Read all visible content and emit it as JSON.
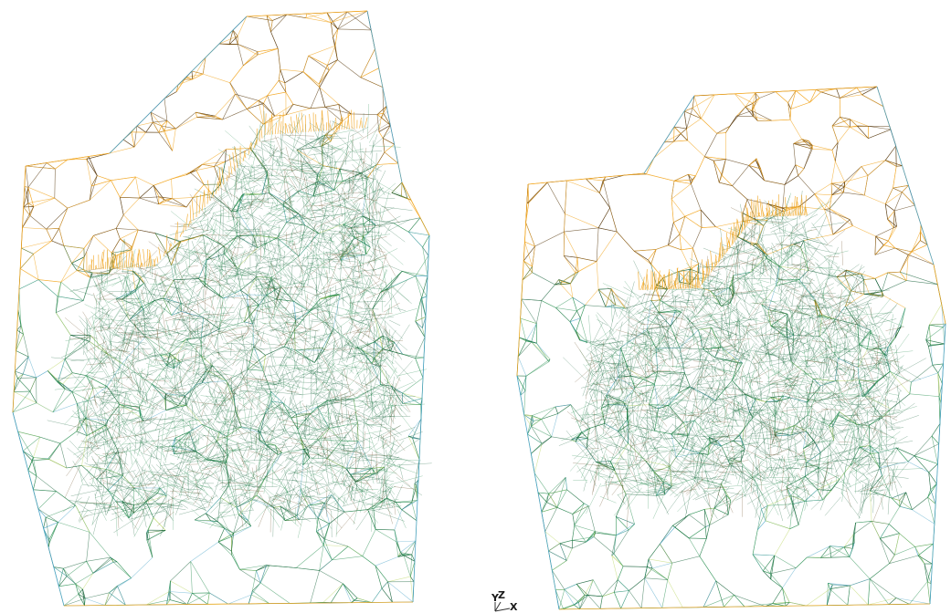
{
  "viewport": {
    "background": "#ffffff",
    "colors": {
      "wire_top": "#f2a620",
      "wire_top_dark": "#5a3b10",
      "wire_mid": "#1e8a4a",
      "wire_mid_dark": "#0b5a30",
      "wire_edge": "#4aa3c8",
      "wire_light": "#b7d35a"
    },
    "meshes": [
      {
        "name": "left-mesh",
        "style": "tetrahedral-wireframe"
      },
      {
        "name": "right-mesh",
        "style": "tetrahedral-wireframe"
      }
    ]
  },
  "axis_triad": {
    "y_label": "Y",
    "z_label": "Z",
    "x_label": "X",
    "icon": "axis-triad-icon"
  }
}
